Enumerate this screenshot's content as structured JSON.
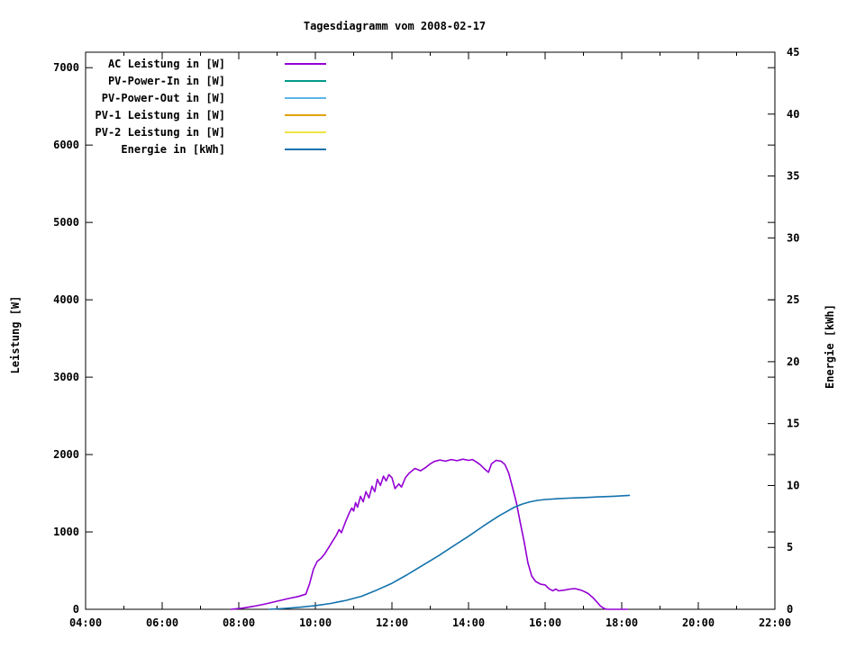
{
  "title": "Tagesdiagramm vom 2008-02-17",
  "chart_data": {
    "type": "line",
    "title": "Tagesdiagramm vom 2008-02-17",
    "legend_position": "top-left-inside",
    "grid": false,
    "x_axis": {
      "unit": "time",
      "range": [
        4,
        22
      ],
      "major_ticks": [
        {
          "h": 4,
          "label": "04:00"
        },
        {
          "h": 6,
          "label": "06:00"
        },
        {
          "h": 8,
          "label": "08:00"
        },
        {
          "h": 10,
          "label": "10:00"
        },
        {
          "h": 12,
          "label": "12:00"
        },
        {
          "h": 14,
          "label": "14:00"
        },
        {
          "h": 16,
          "label": "16:00"
        },
        {
          "h": 18,
          "label": "18:00"
        },
        {
          "h": 20,
          "label": "20:00"
        },
        {
          "h": 22,
          "label": "22:00"
        }
      ],
      "minor_hours": [
        5,
        7,
        9,
        11,
        13,
        15,
        17,
        19,
        21
      ]
    },
    "y1_axis": {
      "label": "Leistung [W]",
      "range": [
        0,
        7200
      ],
      "ticks": [
        {
          "v": 0,
          "label": "0"
        },
        {
          "v": 1000,
          "label": "1000"
        },
        {
          "v": 2000,
          "label": "2000"
        },
        {
          "v": 3000,
          "label": "3000"
        },
        {
          "v": 4000,
          "label": "4000"
        },
        {
          "v": 5000,
          "label": "5000"
        },
        {
          "v": 6000,
          "label": "6000"
        },
        {
          "v": 7000,
          "label": "7000"
        }
      ]
    },
    "y2_axis": {
      "label": "Energie [kWh]",
      "range": [
        0,
        45
      ],
      "ticks": [
        {
          "v": 0,
          "label": "0"
        },
        {
          "v": 5,
          "label": "5"
        },
        {
          "v": 10,
          "label": "10"
        },
        {
          "v": 15,
          "label": "15"
        },
        {
          "v": 20,
          "label": "20"
        },
        {
          "v": 25,
          "label": "25"
        },
        {
          "v": 30,
          "label": "30"
        },
        {
          "v": 35,
          "label": "35"
        },
        {
          "v": 40,
          "label": "40"
        },
        {
          "v": 45,
          "label": "45"
        }
      ]
    },
    "series": [
      {
        "name": "AC Leistung in [W]",
        "axis": "y1",
        "color": "#9400d3",
        "points": [
          [
            7.8,
            0
          ],
          [
            8.1,
            15
          ],
          [
            8.4,
            40
          ],
          [
            8.7,
            70
          ],
          [
            9.0,
            105
          ],
          [
            9.3,
            140
          ],
          [
            9.55,
            165
          ],
          [
            9.75,
            195
          ],
          [
            9.85,
            330
          ],
          [
            9.95,
            520
          ],
          [
            10.05,
            620
          ],
          [
            10.15,
            660
          ],
          [
            10.25,
            720
          ],
          [
            10.35,
            800
          ],
          [
            10.45,
            880
          ],
          [
            10.55,
            960
          ],
          [
            10.62,
            1030
          ],
          [
            10.68,
            990
          ],
          [
            10.78,
            1120
          ],
          [
            10.88,
            1240
          ],
          [
            10.95,
            1310
          ],
          [
            11.0,
            1270
          ],
          [
            11.05,
            1380
          ],
          [
            11.1,
            1320
          ],
          [
            11.18,
            1460
          ],
          [
            11.25,
            1390
          ],
          [
            11.32,
            1520
          ],
          [
            11.4,
            1440
          ],
          [
            11.48,
            1590
          ],
          [
            11.55,
            1520
          ],
          [
            11.62,
            1680
          ],
          [
            11.7,
            1600
          ],
          [
            11.78,
            1720
          ],
          [
            11.85,
            1660
          ],
          [
            11.92,
            1740
          ],
          [
            12.0,
            1700
          ],
          [
            12.08,
            1560
          ],
          [
            12.18,
            1620
          ],
          [
            12.25,
            1580
          ],
          [
            12.35,
            1700
          ],
          [
            12.45,
            1760
          ],
          [
            12.6,
            1820
          ],
          [
            12.75,
            1790
          ],
          [
            12.9,
            1840
          ],
          [
            13.0,
            1880
          ],
          [
            13.1,
            1910
          ],
          [
            13.25,
            1930
          ],
          [
            13.4,
            1915
          ],
          [
            13.55,
            1935
          ],
          [
            13.7,
            1920
          ],
          [
            13.85,
            1940
          ],
          [
            14.0,
            1925
          ],
          [
            14.1,
            1935
          ],
          [
            14.2,
            1905
          ],
          [
            14.3,
            1870
          ],
          [
            14.45,
            1800
          ],
          [
            14.52,
            1770
          ],
          [
            14.6,
            1880
          ],
          [
            14.72,
            1925
          ],
          [
            14.85,
            1915
          ],
          [
            14.95,
            1870
          ],
          [
            15.05,
            1760
          ],
          [
            15.15,
            1570
          ],
          [
            15.25,
            1380
          ],
          [
            15.35,
            1120
          ],
          [
            15.45,
            880
          ],
          [
            15.55,
            600
          ],
          [
            15.65,
            430
          ],
          [
            15.75,
            360
          ],
          [
            15.88,
            325
          ],
          [
            16.0,
            315
          ],
          [
            16.1,
            265
          ],
          [
            16.2,
            240
          ],
          [
            16.28,
            262
          ],
          [
            16.35,
            238
          ],
          [
            16.5,
            248
          ],
          [
            16.65,
            262
          ],
          [
            16.78,
            268
          ],
          [
            16.9,
            252
          ],
          [
            17.0,
            235
          ],
          [
            17.12,
            205
          ],
          [
            17.25,
            150
          ],
          [
            17.35,
            95
          ],
          [
            17.45,
            40
          ],
          [
            17.55,
            8
          ],
          [
            17.62,
            0
          ],
          [
            18.15,
            0
          ]
        ]
      },
      {
        "name": "PV-Power-In in [W]",
        "axis": "y1",
        "color": "#009a8b",
        "points": []
      },
      {
        "name": "PV-Power-Out in [W]",
        "axis": "y1",
        "color": "#5ab4e5",
        "points": []
      },
      {
        "name": "PV-1 Leistung in [W]",
        "axis": "y1",
        "color": "#e0a200",
        "points": []
      },
      {
        "name": "PV-2 Leistung in [W]",
        "axis": "y1",
        "color": "#f0e442",
        "points": []
      },
      {
        "name": "Energie in [kWh]",
        "axis": "y2",
        "color": "#1272ad",
        "points": [
          [
            8.8,
            0
          ],
          [
            9.2,
            0.07
          ],
          [
            9.6,
            0.17
          ],
          [
            10.0,
            0.3
          ],
          [
            10.4,
            0.47
          ],
          [
            10.8,
            0.72
          ],
          [
            11.2,
            1.05
          ],
          [
            11.6,
            1.55
          ],
          [
            12.0,
            2.1
          ],
          [
            12.4,
            2.8
          ],
          [
            12.8,
            3.55
          ],
          [
            13.2,
            4.3
          ],
          [
            13.6,
            5.1
          ],
          [
            14.0,
            5.9
          ],
          [
            14.4,
            6.75
          ],
          [
            14.8,
            7.55
          ],
          [
            15.0,
            7.9
          ],
          [
            15.2,
            8.25
          ],
          [
            15.4,
            8.5
          ],
          [
            15.6,
            8.68
          ],
          [
            15.8,
            8.8
          ],
          [
            16.0,
            8.87
          ],
          [
            16.3,
            8.93
          ],
          [
            16.6,
            8.98
          ],
          [
            17.0,
            9.02
          ],
          [
            17.4,
            9.08
          ],
          [
            17.8,
            9.13
          ],
          [
            18.2,
            9.2
          ]
        ]
      }
    ]
  }
}
